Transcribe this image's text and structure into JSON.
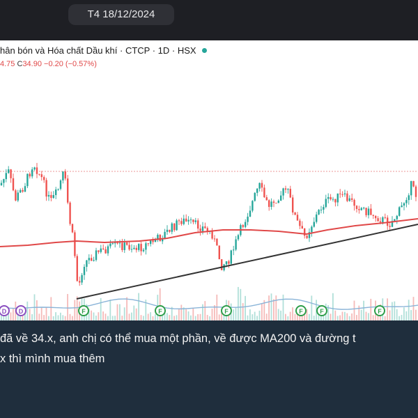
{
  "header": {
    "date": "T4 18/12/2024"
  },
  "chart": {
    "title": "hân bón và Hóa chất Dầu khí · CTCP · 1D · HSX",
    "ohlc_prefix": "4.75",
    "close_label": "C",
    "close_value": "34.90",
    "change": "−0.20 (−0.57%)",
    "colors": {
      "up": "#26a69a",
      "down": "#ef5350",
      "ma200": "#e04848",
      "trendline": "#333333",
      "volume": "#8ab4d8",
      "event_green": "#2e9e4a",
      "event_purple": "#8a4dbf"
    },
    "event_markers": [
      {
        "label": "D",
        "type": "dividend"
      },
      {
        "label": "D",
        "type": "dividend"
      },
      {
        "label": "F",
        "type": "financial"
      },
      {
        "label": "F",
        "type": "financial"
      },
      {
        "label": "F",
        "type": "financial"
      },
      {
        "label": "F",
        "type": "financial"
      },
      {
        "label": "F",
        "type": "financial"
      },
      {
        "label": "F",
        "type": "financial"
      }
    ]
  },
  "caption": {
    "line1": "đã về 34.x, anh chị có thể mua một phần, về được MA200 và đường t",
    "line2": "x thì mình mua thêm"
  }
}
